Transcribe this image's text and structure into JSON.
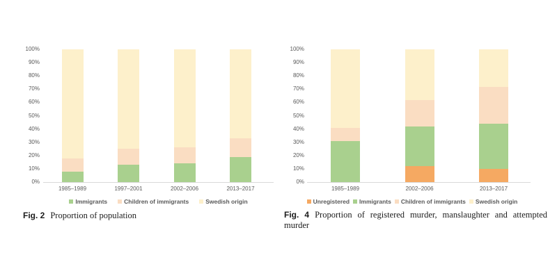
{
  "page": {
    "background": "#ffffff"
  },
  "colors": {
    "tick_text": "#595959",
    "legend_text": "#595959",
    "axis_line": "#d9d9d9",
    "caption_text": "#1c1c1c",
    "immigrants_green": "#A9D08E",
    "children_peach": "#FADDC2",
    "swedish_cream": "#FDF0CB",
    "unregistered_orange": "#F5A962"
  },
  "chart_data": [
    {
      "id": "fig-2-population",
      "type": "bar",
      "stacked": true,
      "percent": true,
      "caption": {
        "label": "Fig. 2",
        "text": "Proportion of population"
      },
      "categories": [
        "1985–1989",
        "1997–2001",
        "2002–2006",
        "2013–2017"
      ],
      "series": [
        {
          "name": "Immigrants",
          "color": "#A9D08E",
          "values": [
            8,
            13,
            14,
            19
          ]
        },
        {
          "name": "Children of immigrants",
          "color": "#FADDC2",
          "values": [
            10,
            12,
            12,
            14
          ]
        },
        {
          "name": "Swedish origin",
          "color": "#FDF0CB",
          "values": [
            82,
            75,
            74,
            67
          ]
        }
      ],
      "y_axis": {
        "ticks": [
          "100%",
          "90%",
          "80%",
          "70%",
          "60%",
          "50%",
          "40%",
          "30%",
          "20%",
          "10%",
          "0%"
        ],
        "range": [
          0,
          100
        ]
      },
      "xlabel": "",
      "ylabel": "",
      "grid": false,
      "legend_position": "bottom"
    },
    {
      "id": "fig-4-murder",
      "type": "bar",
      "stacked": true,
      "percent": true,
      "caption": {
        "label": "Fig. 4",
        "text": "Proportion of registered murder, manslaughter and attempted murder"
      },
      "categories": [
        "1985–1989",
        "2002–2006",
        "2013–2017"
      ],
      "series": [
        {
          "name": "Unregistered",
          "color": "#F5A962",
          "values": [
            0,
            12,
            10
          ]
        },
        {
          "name": "Immigrants",
          "color": "#A9D08E",
          "values": [
            31,
            30,
            34
          ]
        },
        {
          "name": "Children of immigrants",
          "color": "#FADDC2",
          "values": [
            10,
            20,
            28
          ]
        },
        {
          "name": "Swedish origin",
          "color": "#FDF0CB",
          "values": [
            59,
            38,
            28
          ]
        }
      ],
      "y_axis": {
        "ticks": [
          "100%",
          "90%",
          "80%",
          "70%",
          "60%",
          "50%",
          "40%",
          "30%",
          "20%",
          "10%",
          "0%"
        ],
        "range": [
          0,
          100
        ]
      },
      "xlabel": "",
      "ylabel": "",
      "grid": false,
      "legend_position": "bottom"
    }
  ]
}
